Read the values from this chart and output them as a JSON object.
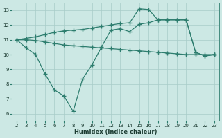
{
  "line1_x": [
    2,
    3,
    4,
    5,
    6,
    7,
    8,
    9,
    10,
    11,
    12,
    13,
    14,
    15,
    16,
    17,
    18,
    19,
    20,
    21,
    22,
    23
  ],
  "line1_y": [
    11.0,
    11.1,
    11.2,
    11.35,
    11.5,
    11.6,
    11.65,
    11.7,
    11.8,
    11.9,
    12.0,
    12.1,
    12.15,
    13.1,
    13.05,
    12.35,
    12.35,
    12.35,
    12.35,
    10.15,
    9.9,
    10.0
  ],
  "line2_x": [
    2,
    3,
    4,
    5,
    6,
    7,
    8,
    9,
    10,
    11,
    12,
    13,
    14,
    15,
    16,
    17,
    18,
    19,
    20,
    21,
    22,
    23
  ],
  "line2_y": [
    11.0,
    11.0,
    10.95,
    10.85,
    10.75,
    10.65,
    10.6,
    10.55,
    10.5,
    10.45,
    10.4,
    10.35,
    10.3,
    10.25,
    10.2,
    10.15,
    10.1,
    10.05,
    10.0,
    10.0,
    10.0,
    10.0
  ],
  "line3_x": [
    2,
    3,
    4,
    5,
    6,
    7,
    8,
    9,
    10,
    11,
    12,
    13,
    14,
    15,
    16,
    17,
    18,
    19,
    20,
    21,
    22,
    23
  ],
  "line3_y": [
    11.0,
    10.45,
    10.0,
    8.7,
    7.6,
    7.2,
    6.15,
    8.35,
    9.3,
    10.5,
    11.65,
    11.75,
    11.55,
    12.05,
    12.15,
    12.35,
    12.35,
    12.35,
    12.35,
    10.15,
    9.9,
    10.0
  ],
  "color": "#2d7d6e",
  "bg_color": "#cce8e4",
  "grid_major_color": "#a8ccc8",
  "grid_minor_color": "#bcdad6",
  "xlabel": "Humidex (Indice chaleur)",
  "xlim": [
    1.5,
    23.5
  ],
  "ylim": [
    5.5,
    13.5
  ],
  "xticks": [
    2,
    3,
    4,
    5,
    6,
    7,
    8,
    9,
    10,
    11,
    12,
    13,
    14,
    15,
    16,
    17,
    18,
    19,
    20,
    21,
    22,
    23
  ],
  "yticks": [
    6,
    7,
    8,
    9,
    10,
    11,
    12,
    13
  ],
  "marker": "+",
  "markersize": 4,
  "linewidth": 0.9
}
